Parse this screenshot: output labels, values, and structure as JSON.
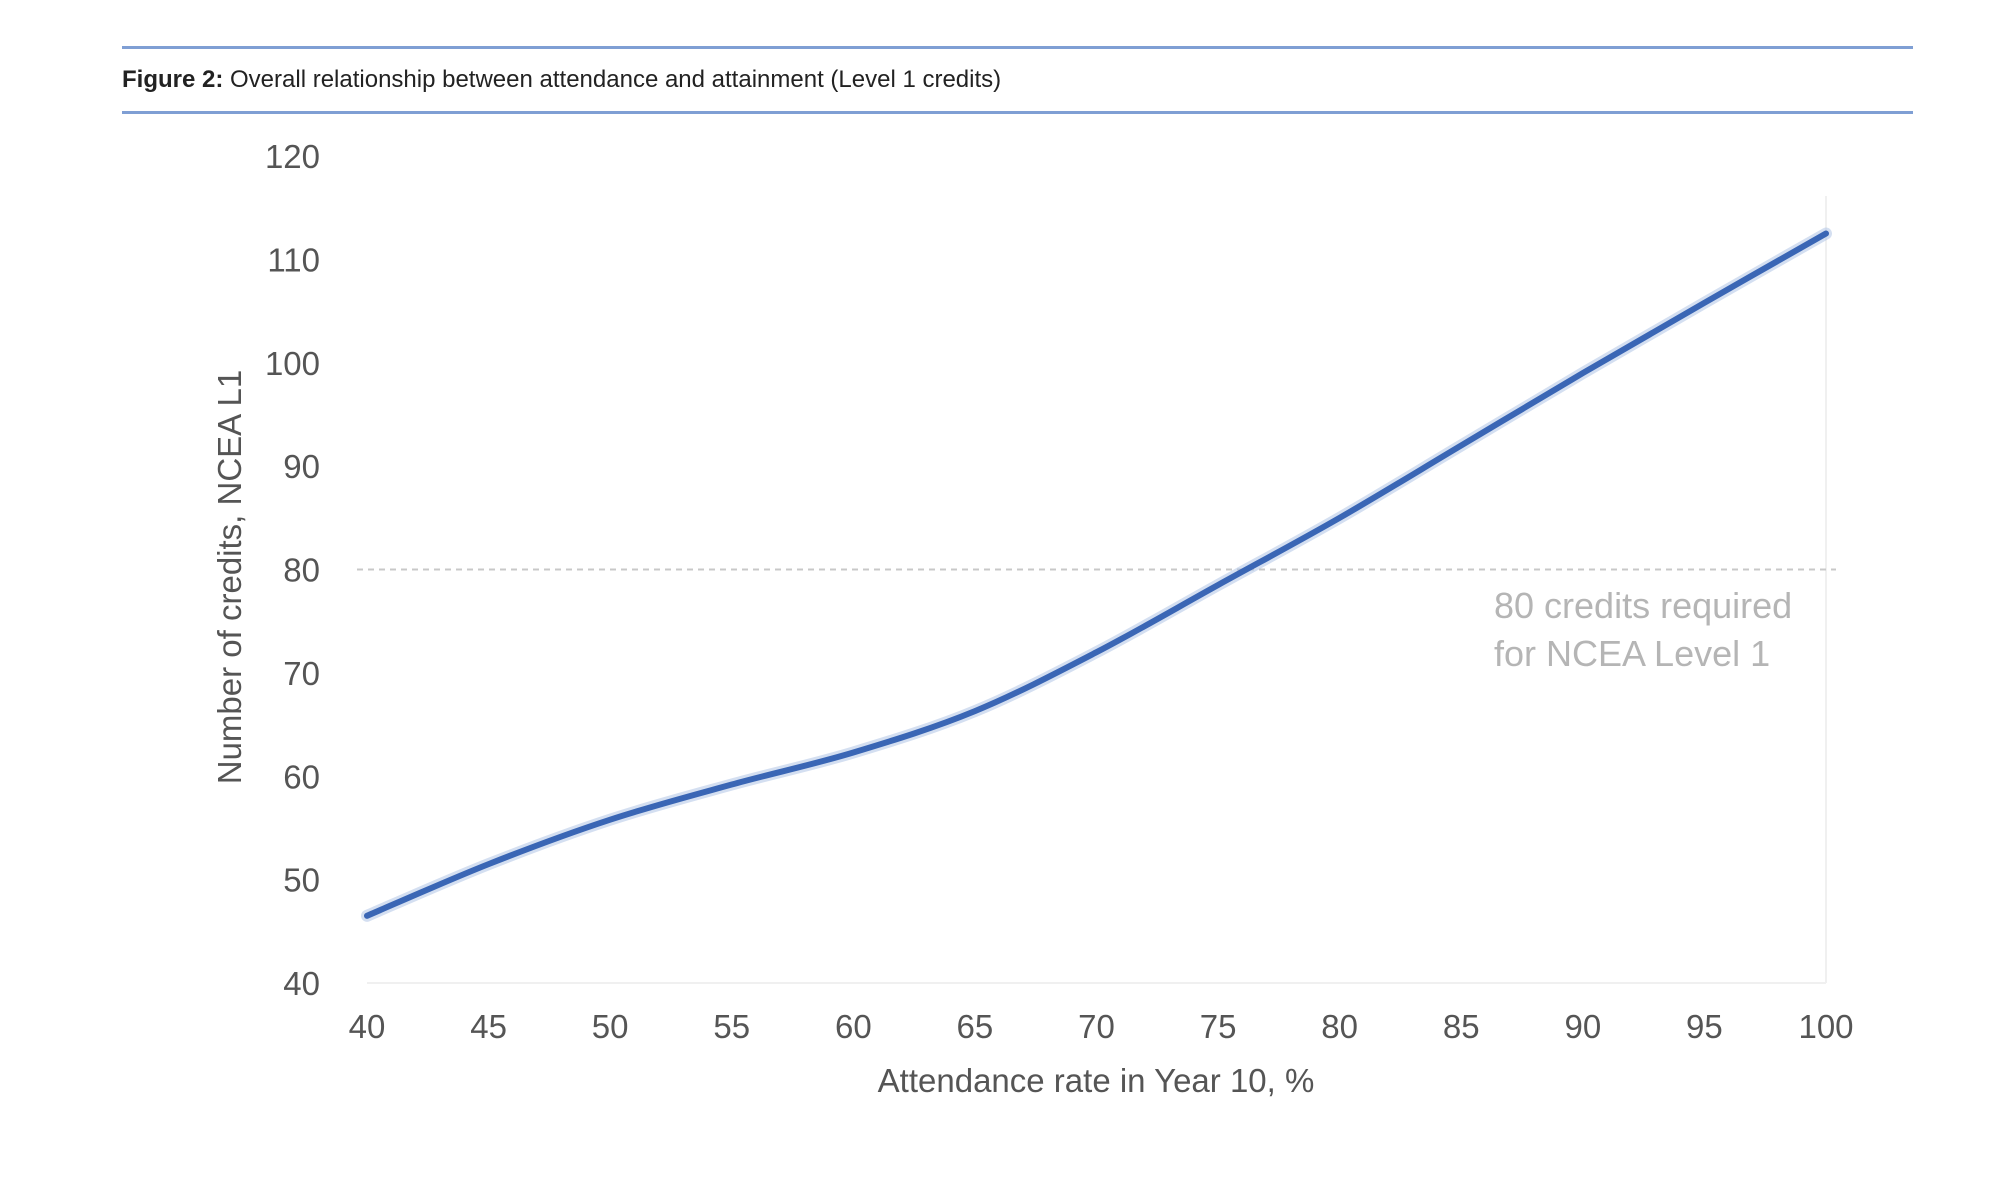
{
  "figure": {
    "label": "Figure 2:",
    "caption": "Overall relationship between attendance and attainment (Level 1 credits)"
  },
  "colors": {
    "line": "#3a66b5",
    "band": "#a9bfe3",
    "rule": "#7f9fd4",
    "threshold": "#c8c8c8",
    "annotation": "#b5b5b5",
    "axis_text": "#555555"
  },
  "chart_data": {
    "type": "line",
    "title": "Overall relationship between attendance and attainment (Level 1 credits)",
    "xlabel": "Attendance rate in Year 10, %",
    "ylabel": "Number of credits, NCEA L1",
    "xlim": [
      40,
      100
    ],
    "ylim": [
      40,
      120
    ],
    "xticks": [
      40,
      45,
      50,
      55,
      60,
      65,
      70,
      75,
      80,
      85,
      90,
      95,
      100
    ],
    "yticks": [
      40,
      50,
      60,
      70,
      80,
      90,
      100,
      110,
      120
    ],
    "grid": false,
    "series": [
      {
        "name": "Credits",
        "x": [
          40,
          45,
          50,
          55,
          60,
          65,
          70,
          75,
          80,
          85,
          90,
          95,
          100
        ],
        "y": [
          46.5,
          51.5,
          55.8,
          59.2,
          62.3,
          66.3,
          72.0,
          78.5,
          85.0,
          92.0,
          99.0,
          105.8,
          112.5
        ]
      }
    ],
    "reference_line": {
      "y": 80,
      "style": "dashed"
    },
    "annotation": {
      "line1": "80 credits required",
      "line2": "for NCEA Level 1"
    }
  }
}
